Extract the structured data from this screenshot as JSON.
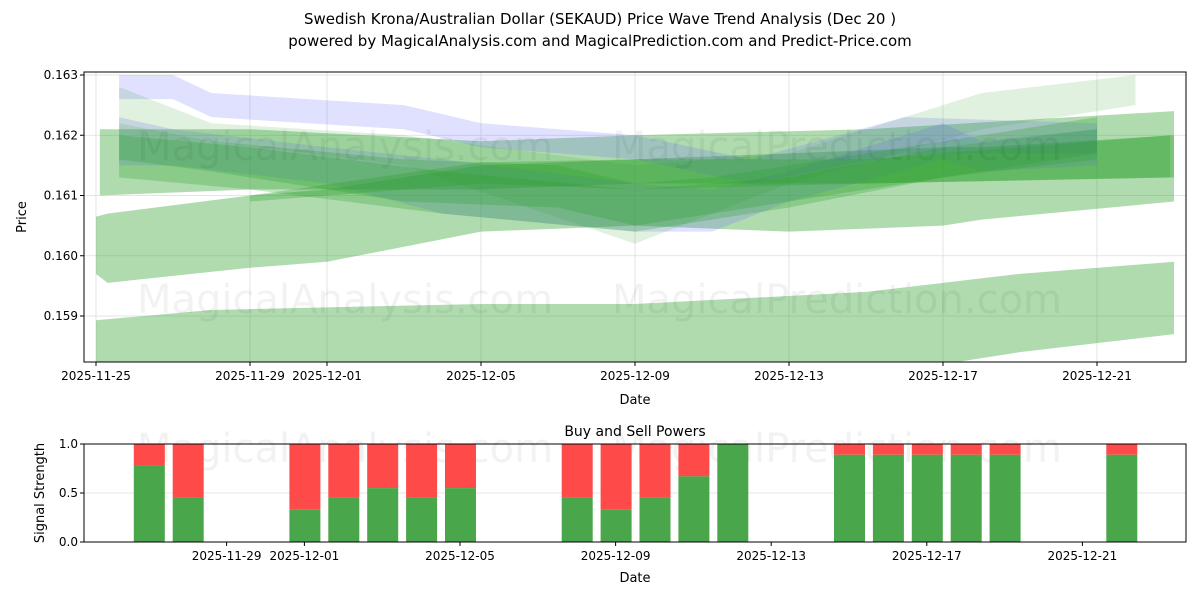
{
  "title": "Swedish Krona/Australian Dollar (SEKAUD) Price Wave Trend Analysis (Dec 20 )",
  "subtitle": "powered by MagicalAnalysis.com and MagicalPrediction.com and Predict-Price.com",
  "watermarks": [
    "MagicalAnalysis.com",
    "MagicalPrediction.com"
  ],
  "colors": {
    "green": "#2ca02c",
    "blue": "#6464ff",
    "buy": "#4aa64a",
    "sell": "#ff4a4a"
  },
  "chart_data": [
    {
      "type": "area",
      "title": "",
      "xlabel": "Date",
      "ylabel": "Price",
      "start_date": "2025-11-25",
      "x_ticks": [
        {
          "day": 0,
          "label": "2025-11-25"
        },
        {
          "day": 4,
          "label": "2025-11-29"
        },
        {
          "day": 6,
          "label": "2025-12-01"
        },
        {
          "day": 10,
          "label": "2025-12-05"
        },
        {
          "day": 14,
          "label": "2025-12-09"
        },
        {
          "day": 18,
          "label": "2025-12-13"
        },
        {
          "day": 22,
          "label": "2025-12-17"
        },
        {
          "day": 26,
          "label": "2025-12-21"
        }
      ],
      "y_ticks": [
        "0.159",
        "0.160",
        "0.161",
        "0.162",
        "0.163"
      ],
      "ylim": [
        0.15818,
        0.16305
      ],
      "xlim": [
        -0.3,
        28.3
      ],
      "bands": [
        {
          "color": "green",
          "alpha": 0.38,
          "points": [
            [
              0,
              0.15893,
              0.1575
            ],
            [
              3,
              0.1591,
              0.1576
            ],
            [
              10,
              0.1592,
              0.1577
            ],
            [
              14,
              0.1592,
              0.1578
            ],
            [
              20,
              0.1594,
              0.158
            ],
            [
              24,
              0.1597,
              0.1584
            ],
            [
              28,
              0.1599,
              0.1587
            ]
          ]
        },
        {
          "color": "green",
          "alpha": 0.38,
          "points": [
            [
              0,
              0.16065,
              0.1597
            ],
            [
              0.3,
              0.1607,
              0.15955
            ],
            [
              4,
              0.161,
              0.1598
            ],
            [
              6,
              0.1611,
              0.1599
            ],
            [
              10,
              0.1615,
              0.1604
            ],
            [
              14,
              0.1616,
              0.1605
            ],
            [
              18,
              0.1617,
              0.1604
            ],
            [
              22,
              0.1618,
              0.1605
            ],
            [
              23,
              0.1618,
              0.1606
            ],
            [
              28,
              0.162,
              0.1609
            ]
          ]
        },
        {
          "color": "green",
          "alpha": 0.38,
          "points": [
            [
              0.1,
              0.1621,
              0.161
            ],
            [
              4,
              0.1621,
              0.1611
            ],
            [
              10,
              0.1619,
              0.1611
            ],
            [
              14,
              0.162,
              0.1612
            ],
            [
              20,
              0.1621,
              0.1612
            ],
            [
              28,
              0.1624,
              0.1613
            ]
          ]
        },
        {
          "color": "blue",
          "alpha": 0.2,
          "points": [
            [
              0.6,
              0.163,
              0.1626
            ],
            [
              2,
              0.163,
              0.1626
            ],
            [
              3,
              0.1627,
              0.1623
            ],
            [
              8,
              0.1625,
              0.1621
            ],
            [
              10,
              0.1622,
              0.1618
            ],
            [
              14,
              0.162,
              0.1616
            ],
            [
              17,
              0.1616,
              0.1612
            ],
            [
              21,
              0.1623,
              0.1617
            ],
            [
              26,
              0.1622,
              0.1617
            ]
          ]
        },
        {
          "color": "blue",
          "alpha": 0.2,
          "points": [
            [
              0.6,
              0.1623,
              0.1615
            ],
            [
              2,
              0.1621,
              0.1615
            ],
            [
              6,
              0.1618,
              0.1612
            ],
            [
              9,
              0.1616,
              0.1607
            ],
            [
              14,
              0.1612,
              0.1604
            ],
            [
              16,
              0.1611,
              0.1604
            ],
            [
              18,
              0.1614,
              0.1609
            ],
            [
              22,
              0.1622,
              0.1616
            ],
            [
              23,
              0.1619,
              0.1614
            ],
            [
              26,
              0.1621,
              0.1615
            ]
          ]
        },
        {
          "color": "green",
          "alpha": 0.28,
          "points": [
            [
              0.6,
              0.1622,
              0.1616
            ],
            [
              3,
              0.1619,
              0.1614
            ],
            [
              8,
              0.1616,
              0.1609
            ],
            [
              12,
              0.1615,
              0.1608
            ],
            [
              14,
              0.1612,
              0.1605
            ],
            [
              16,
              0.1613,
              0.1607
            ],
            [
              20,
              0.1617,
              0.1611
            ],
            [
              26,
              0.1623,
              0.1617
            ]
          ]
        },
        {
          "color": "green",
          "alpha": 0.28,
          "points": [
            [
              0.6,
              0.162,
              0.1613
            ],
            [
              4,
              0.1618,
              0.1611
            ],
            [
              9,
              0.1614,
              0.1607
            ],
            [
              14,
              0.1611,
              0.1604
            ],
            [
              18,
              0.1613,
              0.1608
            ],
            [
              22,
              0.1618,
              0.1613
            ],
            [
              26,
              0.1621,
              0.1616
            ]
          ]
        },
        {
          "color": "green",
          "alpha": 0.3,
          "points": [
            [
              4,
              0.161,
              0.1609
            ],
            [
              10,
              0.16155,
              0.1612
            ],
            [
              14,
              0.1616,
              0.1611
            ],
            [
              20,
              0.1616,
              0.1612
            ],
            [
              27.9,
              0.162,
              0.1613
            ]
          ]
        },
        {
          "color": "green",
          "alpha": 0.15,
          "points": [
            [
              0.6,
              0.1628,
              0.1622
            ],
            [
              3,
              0.1622,
              0.1619
            ],
            [
              8,
              0.162,
              0.1615
            ],
            [
              14,
              0.1615,
              0.1602
            ],
            [
              18,
              0.1617,
              0.1612
            ],
            [
              23,
              0.1627,
              0.1621
            ],
            [
              27,
              0.163,
              0.1625
            ]
          ]
        }
      ]
    },
    {
      "type": "bar",
      "title": "Buy and Sell Powers",
      "xlabel": "Date",
      "ylabel": "Signal Strength",
      "ylim": [
        0,
        1
      ],
      "y_ticks": [
        "0.0",
        "0.5",
        "1.0"
      ],
      "x_ticks": [
        {
          "day": 4,
          "label": "2025-11-29"
        },
        {
          "day": 6,
          "label": "2025-12-01"
        },
        {
          "day": 10,
          "label": "2025-12-05"
        },
        {
          "day": 14,
          "label": "2025-12-09"
        },
        {
          "day": 18,
          "label": "2025-12-13"
        },
        {
          "day": 22,
          "label": "2025-12-17"
        },
        {
          "day": 26,
          "label": "2025-12-21"
        }
      ],
      "bars": [
        {
          "day": 2,
          "buy": 0.78
        },
        {
          "day": 3,
          "buy": 0.45
        },
        {
          "day": 6,
          "buy": 0.33
        },
        {
          "day": 7,
          "buy": 0.45
        },
        {
          "day": 8,
          "buy": 0.55
        },
        {
          "day": 9,
          "buy": 0.45
        },
        {
          "day": 10,
          "buy": 0.55
        },
        {
          "day": 13,
          "buy": 0.45
        },
        {
          "day": 14,
          "buy": 0.33
        },
        {
          "day": 15,
          "buy": 0.45
        },
        {
          "day": 16,
          "buy": 0.67
        },
        {
          "day": 17,
          "buy": 1.0
        },
        {
          "day": 20,
          "buy": 0.89
        },
        {
          "day": 21,
          "buy": 0.89
        },
        {
          "day": 22,
          "buy": 0.89
        },
        {
          "day": 23,
          "buy": 0.89
        },
        {
          "day": 24,
          "buy": 0.89
        },
        {
          "day": 27,
          "buy": 0.89
        }
      ]
    }
  ]
}
